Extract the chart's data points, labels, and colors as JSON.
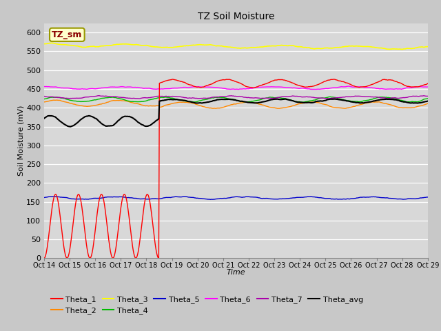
{
  "title": "TZ Soil Moisture",
  "xlabel": "Time",
  "ylabel": "Soil Moisture (mV)",
  "ylim": [
    0,
    625
  ],
  "yticks": [
    0,
    50,
    100,
    150,
    200,
    250,
    300,
    350,
    400,
    450,
    500,
    550,
    600
  ],
  "x_start": 14,
  "x_end": 29,
  "n_points": 600,
  "bg_color": "#d8d8d8",
  "fig_color": "#c8c8c8",
  "label_box": "TZ_sm",
  "series": {
    "Theta_1": {
      "color": "#ff0000"
    },
    "Theta_2": {
      "color": "#ff8800",
      "base": 412
    },
    "Theta_3": {
      "color": "#ffff00",
      "base": 567
    },
    "Theta_4": {
      "color": "#00bb00",
      "base": 422
    },
    "Theta_5": {
      "color": "#0000cc",
      "base": 160
    },
    "Theta_6": {
      "color": "#ff00ff",
      "base": 453
    },
    "Theta_7": {
      "color": "#aa00aa",
      "base": 428
    },
    "Theta_avg": {
      "color": "#000000"
    }
  },
  "transition_x": 18.5,
  "x_tick_labels": [
    "Oct 14",
    "Oct 15",
    "Oct 16",
    "Oct 17",
    "Oct 18",
    "Oct 19",
    "Oct 20",
    "Oct 21",
    "Oct 22",
    "Oct 23",
    "Oct 24",
    "Oct 25",
    "Oct 26",
    "Oct 27",
    "Oct 28",
    "Oct 29"
  ],
  "x_tick_positions": [
    14,
    15,
    16,
    17,
    18,
    19,
    20,
    21,
    22,
    23,
    24,
    25,
    26,
    27,
    28,
    29
  ]
}
